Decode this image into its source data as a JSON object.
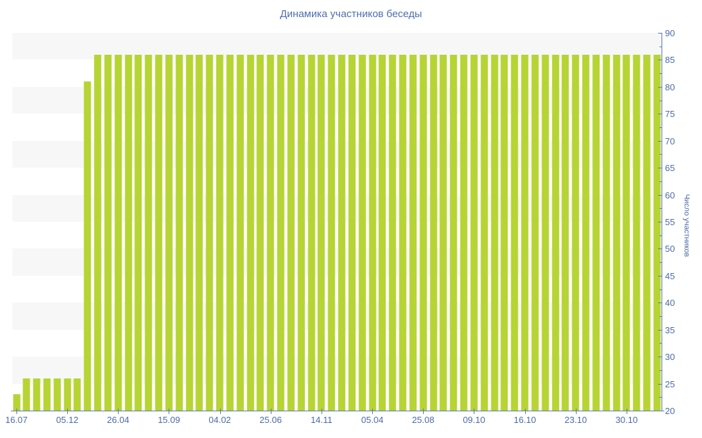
{
  "chart_data": {
    "type": "bar",
    "title": "Динамика участников беседы",
    "ylabel": "Число участников",
    "xlabel": "",
    "ylim": [
      20,
      90
    ],
    "y_ticks": [
      20,
      25,
      30,
      35,
      40,
      45,
      50,
      55,
      60,
      65,
      70,
      75,
      80,
      85,
      90
    ],
    "y_minor_tick_step": 2.5,
    "x_tick_labels": [
      "16.07",
      "05.12",
      "26.04",
      "15.09",
      "04.02",
      "25.06",
      "14.11",
      "05.04",
      "25.08",
      "09.10",
      "16.10",
      "23.10",
      "30.10"
    ],
    "x_tick_every_bars": 5,
    "grid": "horizontal-bands",
    "legend": "none",
    "values": [
      23,
      26,
      26,
      26,
      26,
      26,
      26,
      81,
      86,
      86,
      86,
      86,
      86,
      86,
      86,
      86,
      86,
      86,
      86,
      86,
      86,
      86,
      86,
      86,
      86,
      86,
      86,
      86,
      86,
      86,
      86,
      86,
      86,
      86,
      86,
      86,
      86,
      86,
      86,
      86,
      86,
      86,
      86,
      86,
      86,
      86,
      86,
      86,
      86,
      86,
      86,
      86,
      86,
      86,
      86,
      86,
      86,
      86,
      86,
      86,
      86,
      86,
      86,
      86
    ],
    "colors": {
      "bar": "#b6d434",
      "band": "#f7f7f7",
      "axis": "#5b79b2",
      "text": "#4c6ba8",
      "title": "#4d6fae",
      "background": "#ffffff"
    }
  }
}
